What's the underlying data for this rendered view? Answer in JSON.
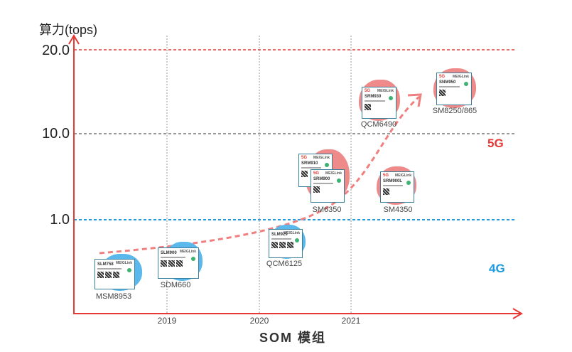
{
  "y_axis": {
    "label": "算力(tops)",
    "ticks": [
      "20.0",
      "10.0",
      "1.0"
    ]
  },
  "x_axis": {
    "label": "SOM 模组",
    "ticks": [
      "2019",
      "2020",
      "2021"
    ]
  },
  "categories": {
    "5g": "5G",
    "4g": "4G"
  },
  "colors": {
    "5g": "#e53935",
    "4g": "#1e9be0",
    "trend": "#f08080",
    "axis": "#e53935"
  },
  "brand": "MEIGLink",
  "modules": [
    {
      "module": "SLM758",
      "chip": "MSM8953",
      "gen": "4G"
    },
    {
      "module": "SLM900",
      "chip": "SDM660",
      "gen": "4G"
    },
    {
      "module": "SLM929",
      "chip": "QCM6125",
      "gen": "4G"
    },
    {
      "module": "SRM910",
      "chip": "SM6350",
      "gen": "5G"
    },
    {
      "module": "SRM900",
      "chip": "SM6350",
      "gen": "5G"
    },
    {
      "module": "SRM930",
      "chip": "QCM6490",
      "gen": "5G"
    },
    {
      "module": "SNM950",
      "chip": "SM8250/865",
      "gen": "5G"
    },
    {
      "module": "SRM900L",
      "chip": "SM4350",
      "gen": "5G"
    }
  ]
}
